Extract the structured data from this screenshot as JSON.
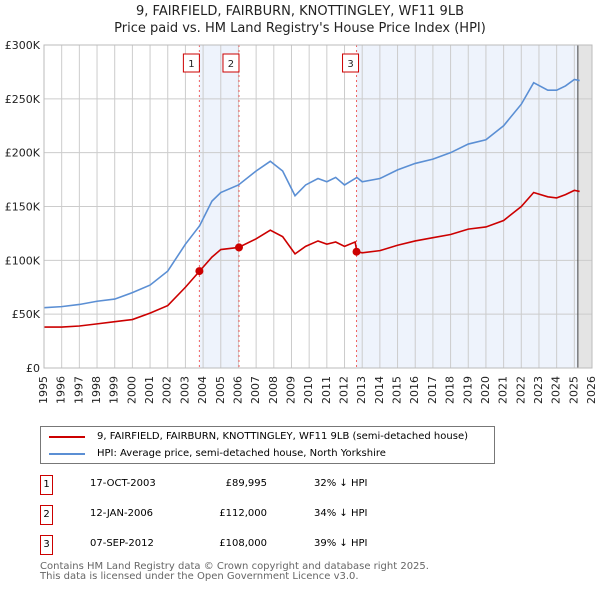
{
  "chart_data": {
    "type": "line",
    "title": "9, FAIRFIELD, FAIRBURN, KNOTTINGLEY, WF11 9LB",
    "subtitle": "Price paid vs. HM Land Registry's House Price Index (HPI)",
    "xlim": [
      1995,
      2026
    ],
    "ylim": [
      0,
      300000
    ],
    "x_ticks": [
      "1995",
      "1996",
      "1997",
      "1998",
      "1999",
      "2000",
      "2001",
      "2002",
      "2003",
      "2004",
      "2005",
      "2006",
      "2007",
      "2008",
      "2009",
      "2010",
      "2011",
      "2012",
      "2013",
      "2014",
      "2015",
      "2016",
      "2017",
      "2018",
      "2019",
      "2020",
      "2021",
      "2022",
      "2023",
      "2024",
      "2025",
      "2026"
    ],
    "y_ticks": [
      {
        "v": 0,
        "label": "£0"
      },
      {
        "v": 50000,
        "label": "£50K"
      },
      {
        "v": 100000,
        "label": "£100K"
      },
      {
        "v": 150000,
        "label": "£150K"
      },
      {
        "v": 200000,
        "label": "£200K"
      },
      {
        "v": 250000,
        "label": "£250K"
      },
      {
        "v": 300000,
        "label": "£300K"
      }
    ],
    "series": [
      {
        "name": "9, FAIRFIELD, FAIRBURN, KNOTTINGLEY, WF11 9LB (semi-detached house)",
        "color": "#cc0000",
        "x": [
          1995,
          1996,
          1997,
          1998,
          1999,
          2000,
          2001,
          2002,
          2003,
          2003.8,
          2004.5,
          2005,
          2006,
          2007,
          2007.8,
          2008.5,
          2009.2,
          2009.8,
          2010.5,
          2011,
          2011.5,
          2012,
          2012.6,
          2012.7,
          2013,
          2014,
          2015,
          2016,
          2017,
          2018,
          2019,
          2020,
          2021,
          2022,
          2022.7,
          2023.5,
          2024,
          2024.5,
          2025,
          2025.3
        ],
        "y": [
          38000,
          38000,
          39000,
          41000,
          43000,
          45000,
          51000,
          58000,
          75000,
          89995,
          103000,
          110000,
          112000,
          120000,
          128000,
          122000,
          106000,
          113000,
          118000,
          115000,
          117000,
          113000,
          117000,
          108000,
          107000,
          109000,
          114000,
          118000,
          121000,
          124000,
          129000,
          131000,
          137000,
          150000,
          163000,
          159000,
          158000,
          161000,
          165000,
          164000
        ]
      },
      {
        "name": "HPI: Average price, semi-detached house, North Yorkshire",
        "color": "#5b8fd4",
        "x": [
          1995,
          1996,
          1997,
          1998,
          1999,
          2000,
          2001,
          2002,
          2003,
          2003.8,
          2004.5,
          2005,
          2006,
          2007,
          2007.8,
          2008.5,
          2009.2,
          2009.8,
          2010.5,
          2011,
          2011.5,
          2012,
          2012.7,
          2013,
          2014,
          2015,
          2016,
          2017,
          2018,
          2019,
          2020,
          2021,
          2022,
          2022.7,
          2023.5,
          2024,
          2024.5,
          2025,
          2025.3
        ],
        "y": [
          56000,
          57000,
          59000,
          62000,
          64000,
          70000,
          77000,
          90000,
          115000,
          132000,
          155000,
          163000,
          170000,
          183000,
          192000,
          183000,
          160000,
          170000,
          176000,
          173000,
          177000,
          170000,
          177000,
          173000,
          176000,
          184000,
          190000,
          194000,
          200000,
          208000,
          212000,
          225000,
          245000,
          265000,
          258000,
          258000,
          262000,
          268000,
          267000
        ]
      }
    ],
    "sales": [
      {
        "id": "1",
        "x": 2003.79,
        "date": "17-OCT-2003",
        "price": "£89,995",
        "value": 89995,
        "hpi": "32% ↓ HPI"
      },
      {
        "id": "2",
        "x": 2006.03,
        "date": "12-JAN-2006",
        "price": "£112,000",
        "value": 112000,
        "hpi": "34% ↓ HPI"
      },
      {
        "id": "3",
        "x": 2012.68,
        "date": "07-SEP-2012",
        "price": "£108,000",
        "value": 108000,
        "hpi": "39% ↓ HPI"
      }
    ]
  },
  "footer": {
    "line1": "Contains HM Land Registry data © Crown copyright and database right 2025.",
    "line2": "This data is licensed under the Open Government Licence v3.0."
  }
}
